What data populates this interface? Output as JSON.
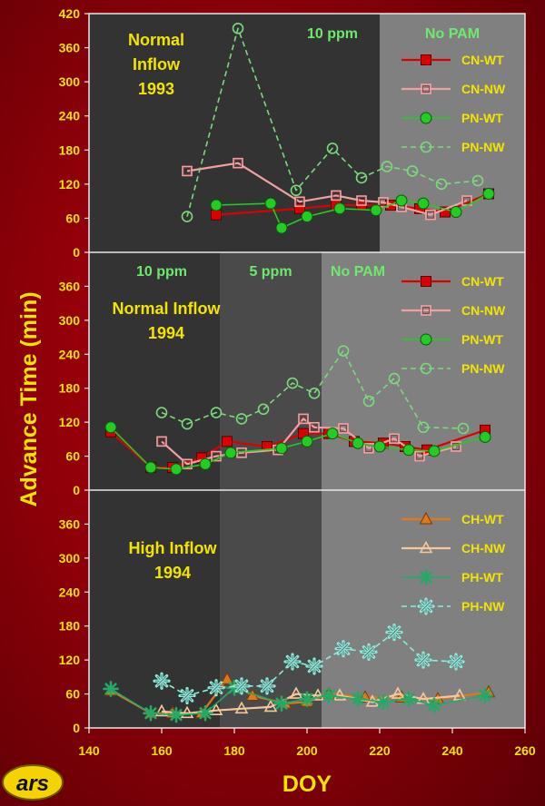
{
  "colors": {
    "bg": "#9a0008",
    "dark": "#333333",
    "mid": "#4a4a4a",
    "light": "#808080",
    "axis_text": "#f2e400",
    "label_text": "#f2e400",
    "period_text": "#6cea6c",
    "CN": "#dd0000",
    "CN_NW": "#f0a0a0",
    "PN": "#22cc22",
    "PN_NW": "#7ada7a",
    "CH": "#e07818",
    "CH_NW": "#f4c89a",
    "PH": "#22aa66",
    "PH_NW": "#88eedd"
  },
  "axes": {
    "xlabel": "DOY",
    "ylabel": "Advance Time (min)",
    "x_ticks": [
      "140",
      "160",
      "180",
      "200",
      "220",
      "240",
      "260"
    ],
    "top_y_ticks": [
      "0",
      "60",
      "120",
      "180",
      "240",
      "300",
      "360",
      "420"
    ],
    "y_ticks": [
      "0",
      "60",
      "120",
      "180",
      "240",
      "300",
      "360"
    ]
  },
  "logo": {
    "text": "ars"
  },
  "chart_data": [
    {
      "type": "line",
      "title": "Normal Inflow 1993",
      "title_lines": [
        "Normal",
        "Inflow",
        "1993"
      ],
      "xlim": [
        140,
        260
      ],
      "ylim": [
        0,
        420
      ],
      "periods": [
        {
          "label": "10 ppm",
          "from": 140,
          "to": 220,
          "shade": "dark"
        },
        {
          "label": "No PAM",
          "from": 220,
          "to": 260,
          "shade": "light"
        }
      ],
      "legend": "top-right",
      "series": [
        {
          "name": "CN-WT",
          "marker": "square-filled",
          "x": [
            175,
            198,
            208,
            215,
            223,
            231,
            238,
            250
          ],
          "y": [
            66,
            77,
            83,
            83,
            83,
            77,
            71,
            103
          ]
        },
        {
          "name": "CN-NW",
          "marker": "square-open",
          "x": [
            167,
            181,
            198,
            208,
            215,
            221,
            226,
            234,
            244
          ],
          "y": [
            143,
            157,
            89,
            100,
            91,
            88,
            80,
            66,
            91
          ]
        },
        {
          "name": "PN-WT",
          "marker": "circle-filled",
          "x": [
            175,
            190,
            193,
            200,
            209,
            219,
            226,
            232,
            241,
            250
          ],
          "y": [
            83,
            86,
            43,
            63,
            77,
            74,
            91,
            86,
            71,
            103
          ]
        },
        {
          "name": "PN-NW",
          "marker": "circle-open",
          "dashed": true,
          "x": [
            167,
            181,
            197,
            207,
            215,
            222,
            229,
            237,
            247
          ],
          "y": [
            63,
            394,
            109,
            183,
            131,
            151,
            143,
            120,
            126
          ]
        }
      ]
    },
    {
      "type": "line",
      "title": "Normal Inflow 1994",
      "title_lines": [
        "Normal Inflow",
        "1994"
      ],
      "xlim": [
        140,
        260
      ],
      "ylim": [
        0,
        420
      ],
      "periods": [
        {
          "label": "10 ppm",
          "from": 140,
          "to": 176,
          "shade": "dark"
        },
        {
          "label": "5 ppm",
          "from": 176,
          "to": 204,
          "shade": "mid"
        },
        {
          "label": "No PAM",
          "from": 204,
          "to": 260,
          "shade": "light"
        }
      ],
      "legend": "top-right",
      "series": [
        {
          "name": "CN-WT",
          "marker": "square-filled",
          "x": [
            146,
            157,
            163,
            171,
            178,
            189,
            199,
            206,
            213,
            221,
            227,
            233,
            249
          ],
          "y": [
            103,
            40,
            40,
            57,
            86,
            77,
            100,
            100,
            86,
            83,
            77,
            71,
            106
          ]
        },
        {
          "name": "CN-NW",
          "marker": "square-open",
          "x": [
            160,
            167,
            175,
            182,
            192,
            199,
            202,
            210,
            217,
            224,
            231,
            241
          ],
          "y": [
            86,
            46,
            60,
            66,
            71,
            126,
            111,
            109,
            74,
            91,
            60,
            77
          ]
        },
        {
          "name": "PN-WT",
          "marker": "circle-filled",
          "x": [
            146,
            157,
            164,
            172,
            179,
            193,
            200,
            207,
            214,
            220,
            228,
            235,
            249
          ],
          "y": [
            111,
            40,
            37,
            46,
            66,
            74,
            86,
            100,
            83,
            77,
            71,
            69,
            94
          ]
        },
        {
          "name": "PN-NW",
          "marker": "circle-open",
          "dashed": true,
          "x": [
            160,
            167,
            175,
            182,
            188,
            196,
            202,
            210,
            217,
            224,
            232,
            243
          ],
          "y": [
            137,
            117,
            137,
            126,
            143,
            189,
            171,
            246,
            157,
            197,
            111,
            109
          ]
        }
      ]
    },
    {
      "type": "line",
      "title": "High Inflow 1994",
      "title_lines": [
        "High Inflow",
        "1994"
      ],
      "xlim": [
        140,
        260
      ],
      "ylim": [
        0,
        420
      ],
      "periods": [
        {
          "from": 140,
          "to": 176,
          "shade": "dark"
        },
        {
          "from": 176,
          "to": 204,
          "shade": "mid"
        },
        {
          "from": 204,
          "to": 260,
          "shade": "light"
        }
      ],
      "legend": "top-right",
      "series": [
        {
          "name": "CH-WT",
          "marker": "triangle-filled",
          "x": [
            146,
            157,
            163,
            171,
            178,
            185,
            194,
            200,
            206,
            216,
            226,
            236,
            250
          ],
          "y": [
            66,
            26,
            26,
            26,
            86,
            57,
            43,
            46,
            60,
            54,
            54,
            51,
            63
          ]
        },
        {
          "name": "CH-NW",
          "marker": "triangle-open",
          "x": [
            160,
            167,
            175,
            182,
            190,
            197,
            203,
            209,
            218,
            225,
            232,
            242
          ],
          "y": [
            29,
            26,
            31,
            34,
            37,
            60,
            57,
            57,
            46,
            60,
            51,
            57
          ]
        },
        {
          "name": "PH-WT",
          "marker": "star-filled",
          "x": [
            146,
            157,
            164,
            172,
            180,
            193,
            200,
            206,
            214,
            221,
            228,
            235,
            249
          ],
          "y": [
            69,
            26,
            23,
            26,
            71,
            43,
            51,
            57,
            51,
            46,
            51,
            40,
            57
          ]
        },
        {
          "name": "PH-NW",
          "marker": "star-open",
          "dashed": true,
          "x": [
            160,
            167,
            175,
            182,
            189,
            196,
            202,
            210,
            217,
            224,
            232,
            241
          ],
          "y": [
            83,
            57,
            71,
            74,
            74,
            117,
            109,
            140,
            134,
            169,
            120,
            117
          ]
        }
      ]
    }
  ]
}
